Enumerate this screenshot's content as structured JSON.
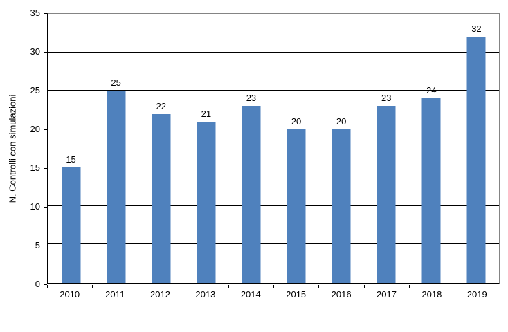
{
  "chart_data": {
    "type": "bar",
    "title": "",
    "categories": [
      "2010",
      "2011",
      "2012",
      "2013",
      "2014",
      "2015",
      "2016",
      "2017",
      "2018",
      "2019"
    ],
    "values": [
      15,
      25,
      22,
      21,
      23,
      20,
      20,
      23,
      24,
      32
    ],
    "data_labels": [
      15,
      25,
      22,
      21,
      23,
      20,
      20,
      23,
      24,
      32
    ],
    "xlabel": "",
    "ylabel": "N. Controlli con simulazioni",
    "ylim": [
      0,
      35
    ],
    "yticks": [
      0,
      5,
      10,
      15,
      20,
      25,
      30,
      35
    ],
    "grid": "horizontal",
    "legend": "none",
    "bar_color": "#4f81bd"
  },
  "colors": {
    "bar": "#4f81bd",
    "axis": "#000000",
    "gridline": "#000000",
    "plot_border": "#848484",
    "background": "#ffffff",
    "text": "#000000"
  }
}
